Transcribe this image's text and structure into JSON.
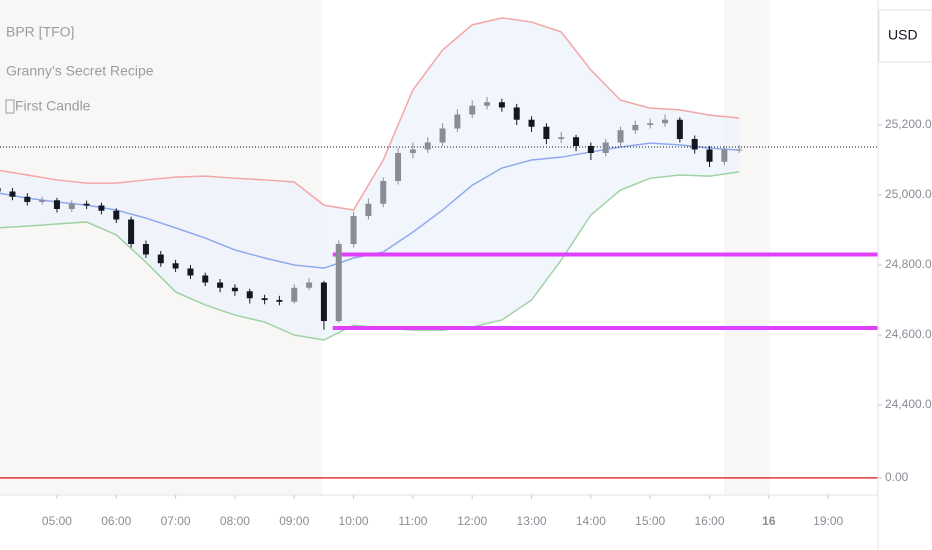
{
  "chart_data": {
    "type": "candlestick",
    "legend_texts": [
      "BPR [TFO]",
      "Granny’s Secret Recipe",
      "First Candle"
    ],
    "currency": "USD",
    "x": [
      4.0,
      4.25,
      4.5,
      4.75,
      5.0,
      5.25,
      5.5,
      5.75,
      6.0,
      6.25,
      6.5,
      6.75,
      7.0,
      7.25,
      7.5,
      7.75,
      8.0,
      8.25,
      8.5,
      8.75,
      9.0,
      9.25,
      9.5,
      9.75,
      10.0,
      10.25,
      10.5,
      10.75,
      11.0,
      11.25,
      11.5,
      11.75,
      12.0,
      12.25,
      12.5,
      12.75,
      13.0,
      13.25,
      13.5,
      13.75,
      14.0,
      14.25,
      14.5,
      14.75,
      15.0,
      15.25,
      15.5,
      15.75,
      16.0,
      16.25,
      16.5
    ],
    "open": [
      25020,
      25010,
      24995,
      24980,
      24985,
      24960,
      24975,
      24970,
      24955,
      24930,
      24860,
      24830,
      24805,
      24790,
      24770,
      24750,
      24735,
      24725,
      24705,
      24700,
      24695,
      24735,
      24750,
      24640,
      24860,
      24940,
      24975,
      25040,
      25120,
      25130,
      25150,
      25190,
      25230,
      25255,
      25265,
      25250,
      25215,
      25195,
      25160,
      25165,
      25140,
      25120,
      25150,
      25185,
      25200,
      25205,
      25215,
      25160,
      25130,
      25095,
      25130
    ],
    "high": [
      25032,
      25020,
      25005,
      24995,
      24992,
      24985,
      24984,
      24978,
      24962,
      24938,
      24870,
      24840,
      24815,
      24800,
      24778,
      24760,
      24745,
      24732,
      24715,
      24712,
      24745,
      24762,
      24755,
      24870,
      24952,
      24990,
      25050,
      25135,
      25150,
      25165,
      25205,
      25245,
      25270,
      25280,
      25275,
      25260,
      25225,
      25205,
      25180,
      25172,
      25150,
      25160,
      25195,
      25212,
      25218,
      25230,
      25222,
      25170,
      25140,
      25140,
      25142
    ],
    "low": [
      24998,
      24985,
      24970,
      24972,
      24950,
      24952,
      24960,
      24945,
      24920,
      24850,
      24820,
      24795,
      24780,
      24760,
      24740,
      24722,
      24712,
      24690,
      24688,
      24685,
      24690,
      24728,
      24615,
      24635,
      24850,
      24930,
      24965,
      25030,
      25105,
      25120,
      25140,
      25180,
      25220,
      25245,
      25238,
      25200,
      25180,
      25145,
      25148,
      25125,
      25100,
      25110,
      25140,
      25175,
      25190,
      25195,
      25150,
      25118,
      25080,
      25085,
      25120
    ],
    "close": [
      25010,
      24995,
      24980,
      24985,
      24960,
      24975,
      24970,
      24955,
      24930,
      24860,
      24830,
      24805,
      24790,
      24770,
      24750,
      24735,
      24725,
      24705,
      24700,
      24695,
      24735,
      24750,
      24640,
      24860,
      24940,
      24975,
      25040,
      25120,
      25130,
      25150,
      25190,
      25230,
      25255,
      25265,
      25250,
      25215,
      25195,
      25160,
      25165,
      25140,
      25120,
      25150,
      25185,
      25200,
      25205,
      25215,
      25160,
      25130,
      25095,
      25130,
      25130
    ],
    "up_color": "#8a8d96",
    "down_color": "#131722",
    "bands": {
      "x": [
        4.0,
        4.5,
        5.0,
        5.5,
        6.0,
        6.5,
        7.0,
        7.5,
        8.0,
        8.5,
        9.0,
        9.5,
        10.0,
        10.5,
        11.0,
        11.5,
        12.0,
        12.5,
        13.0,
        13.5,
        14.0,
        14.5,
        15.0,
        15.5,
        16.0,
        16.5
      ],
      "fill": "#eef2fb",
      "upper": {
        "color": "#f4a6a6",
        "values": [
          25071,
          25057,
          25043,
          25034,
          25034,
          25043,
          25051,
          25054,
          25048,
          25043,
          25037,
          24971,
          24957,
          25100,
          25300,
          25414,
          25486,
          25506,
          25494,
          25466,
          25357,
          25271,
          25248,
          25243,
          25228,
          25220
        ]
      },
      "middle": {
        "color": "#8fa9ec",
        "values": [
          25006,
          24991,
          24980,
          24971,
          24957,
          24934,
          24906,
          24877,
          24843,
          24820,
          24800,
          24791,
          24820,
          24837,
          24894,
          24957,
          25028,
          25077,
          25100,
          25108,
          25123,
          25137,
          25148,
          25143,
          25134,
          25128
        ]
      },
      "lower": {
        "color": "#9fd3a3",
        "values": [
          24906,
          24911,
          24917,
          24923,
          24886,
          24808,
          24723,
          24686,
          24657,
          24637,
          24600,
          24586,
          24628,
          24620,
          24614,
          24614,
          24623,
          24643,
          24700,
          24814,
          24943,
          25014,
          25048,
          25057,
          25054,
          25066
        ]
      }
    },
    "levels": [
      {
        "value": 24830,
        "start": 9.65,
        "color": "#e040fb"
      },
      {
        "value": 24620,
        "start": 9.65,
        "color": "#e040fb"
      }
    ],
    "last_price": 25137,
    "zero_line": {
      "value": 0,
      "color": "#e53935",
      "axis": "y2"
    },
    "xlim": [
      4.04,
      18.84
    ],
    "xticks": [
      {
        "value": 5,
        "label": "05:00"
      },
      {
        "value": 6,
        "label": "06:00"
      },
      {
        "value": 7,
        "label": "07:00"
      },
      {
        "value": 8,
        "label": "08:00"
      },
      {
        "value": 9,
        "label": "09:00"
      },
      {
        "value": 10,
        "label": "10:00"
      },
      {
        "value": 11,
        "label": "11:00"
      },
      {
        "value": 12,
        "label": "12:00"
      },
      {
        "value": 13,
        "label": "13:00"
      },
      {
        "value": 14,
        "label": "14:00"
      },
      {
        "value": 15,
        "label": "15:00"
      },
      {
        "value": 16,
        "label": "16:00"
      },
      {
        "value": 17,
        "label": "16"
      },
      {
        "value": 18,
        "label": "19:00"
      }
    ],
    "ylim": [
      24143,
      25557
    ],
    "yticks": [
      {
        "value": 24400,
        "label": "24,400.00"
      },
      {
        "value": 24600,
        "label": "24,600.00"
      },
      {
        "value": 24800,
        "label": "24,800.00"
      },
      {
        "value": 25000,
        "label": "25,000.00"
      },
      {
        "value": 25200,
        "label": "25,200.00"
      }
    ],
    "y2lim": [
      -1,
      28
    ],
    "y2ticks": [
      {
        "value": 0,
        "label": "0.00"
      }
    ]
  }
}
